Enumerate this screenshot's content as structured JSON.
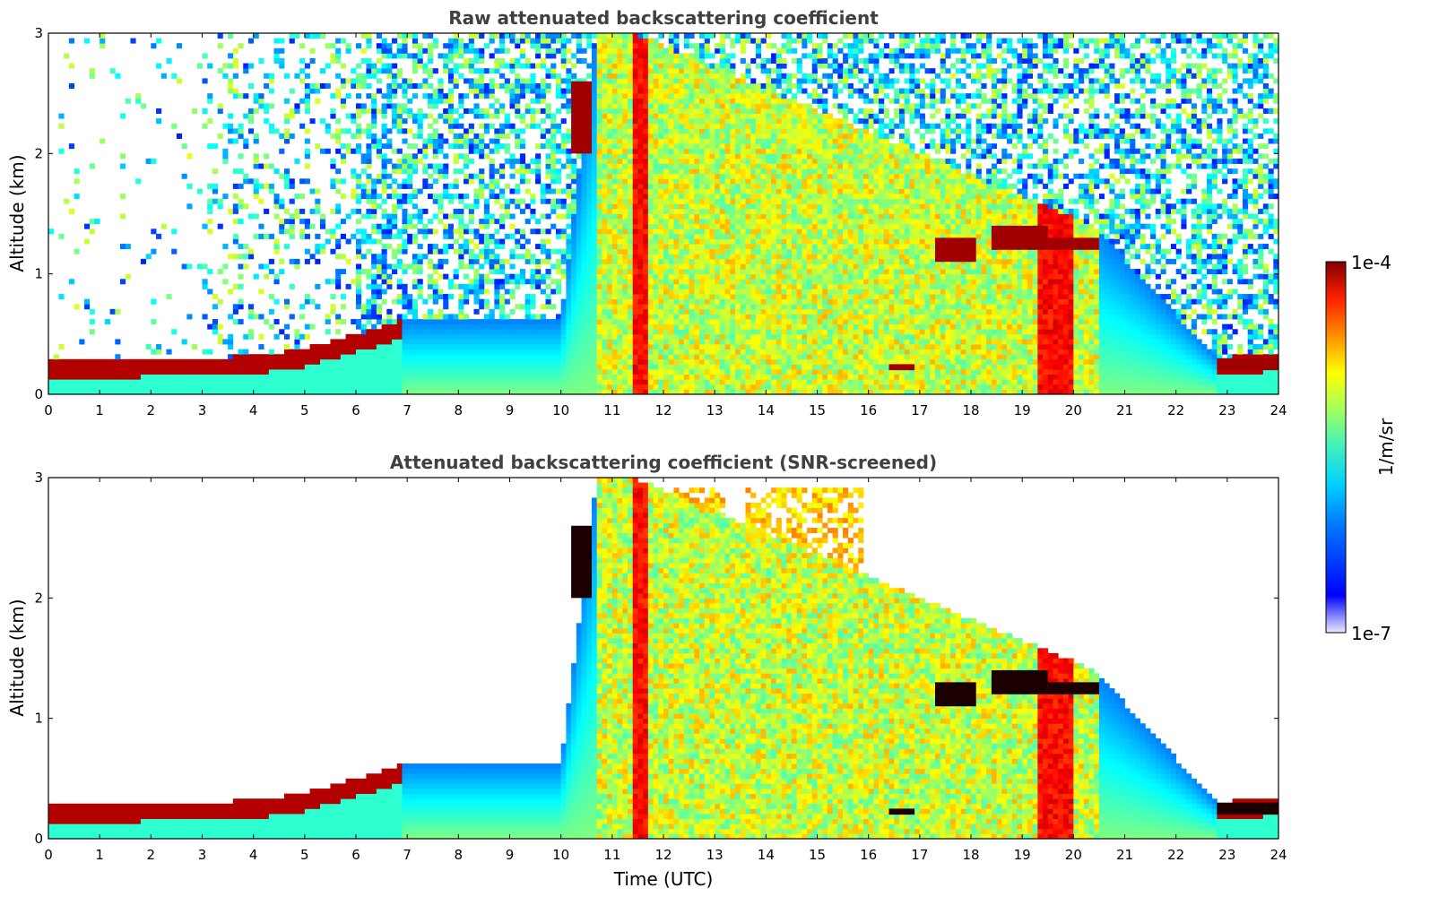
{
  "chart_data": [
    {
      "type": "heatmap",
      "title": "Raw attenuated backscattering coefficient",
      "xlabel": "",
      "ylabel": "Altitude (km)",
      "xlim": [
        0,
        24
      ],
      "ylim": [
        0,
        3
      ],
      "xticks": [
        "0",
        "1",
        "2",
        "3",
        "4",
        "5",
        "6",
        "7",
        "8",
        "9",
        "10",
        "11",
        "12",
        "13",
        "14",
        "15",
        "16",
        "17",
        "18",
        "19",
        "20",
        "21",
        "22",
        "23",
        "24"
      ],
      "yticks": [
        "0",
        "1",
        "2",
        "3"
      ],
      "boundary_layer_top_km": [
        [
          0,
          0.28
        ],
        [
          1,
          0.28
        ],
        [
          2,
          0.3
        ],
        [
          3,
          0.3
        ],
        [
          4,
          0.32
        ],
        [
          5,
          0.38
        ],
        [
          6,
          0.5
        ],
        [
          6.8,
          0.6
        ],
        [
          7,
          0.62
        ],
        [
          10,
          0.62
        ],
        [
          10.7,
          3.0
        ],
        [
          11.4,
          3.0
        ],
        [
          20.4,
          1.4
        ],
        [
          22.8,
          0.3
        ],
        [
          24,
          0.35
        ]
      ],
      "cloud_layers_km": [
        {
          "t_start": 16.4,
          "t_end": 16.9,
          "base": 0.2,
          "top": 0.25
        },
        {
          "t_start": 17.3,
          "t_end": 18.1,
          "base": 1.1,
          "top": 1.3
        },
        {
          "t_start": 18.4,
          "t_end": 19.5,
          "base": 1.2,
          "top": 1.4
        },
        {
          "t_start": 19.5,
          "t_end": 20.5,
          "base": 1.2,
          "top": 1.3
        },
        {
          "t_start": 10.2,
          "t_end": 10.6,
          "base": 2.0,
          "top": 2.6
        },
        {
          "t_start": 22.8,
          "t_end": 24.0,
          "base": 0.2,
          "top": 0.3
        }
      ]
    },
    {
      "type": "heatmap",
      "title": "Attenuated backscattering coefficient (SNR-screened)",
      "xlabel": "Time (UTC)",
      "ylabel": "Altitude (km)",
      "xlim": [
        0,
        24
      ],
      "ylim": [
        0,
        3
      ],
      "xticks": [
        "0",
        "1",
        "2",
        "3",
        "4",
        "5",
        "6",
        "7",
        "8",
        "9",
        "10",
        "11",
        "12",
        "13",
        "14",
        "15",
        "16",
        "17",
        "18",
        "19",
        "20",
        "21",
        "22",
        "23",
        "24"
      ],
      "yticks": [
        "0",
        "1",
        "2",
        "3"
      ],
      "boundary_layer_top_km": [
        [
          0,
          0.28
        ],
        [
          1,
          0.28
        ],
        [
          2,
          0.3
        ],
        [
          3,
          0.3
        ],
        [
          4,
          0.32
        ],
        [
          5,
          0.38
        ],
        [
          6,
          0.5
        ],
        [
          6.8,
          0.6
        ],
        [
          7,
          0.62
        ],
        [
          10,
          0.62
        ],
        [
          10.7,
          3.0
        ],
        [
          11.4,
          3.0
        ],
        [
          20.4,
          1.4
        ],
        [
          22.8,
          0.3
        ],
        [
          24,
          0.35
        ]
      ]
    }
  ],
  "colorbar": {
    "min_label": "1e-7",
    "max_label": "1e-4",
    "label": "1/m/sr",
    "scale": "log",
    "colormap": "jet"
  }
}
